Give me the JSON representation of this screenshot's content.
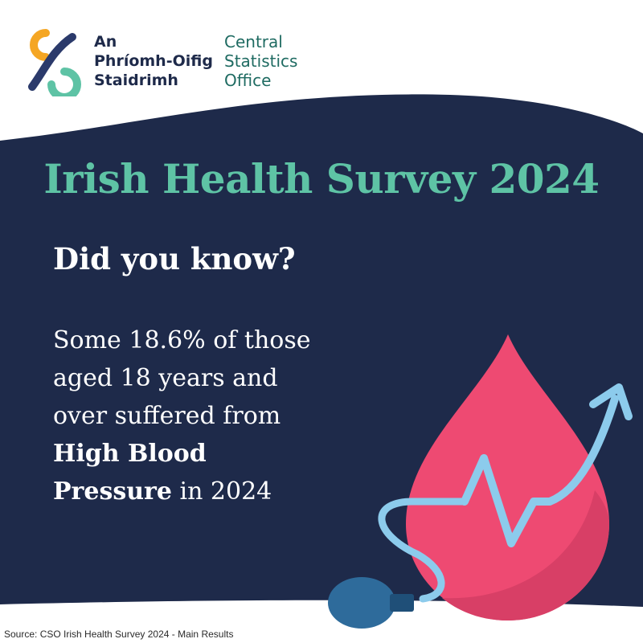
{
  "logo": {
    "irish_lines": [
      "An",
      "Phríomh-Oifig",
      "Staidrimh"
    ],
    "english_lines": [
      "Central",
      "Statistics",
      "Office"
    ]
  },
  "title": "Irish Health Survey 2024",
  "kicker": "Did you know?",
  "body": {
    "line1": "Some 18.6% of those",
    "line2": "aged 18 years and",
    "line3": "over suffered from",
    "line4_bold": "High Blood",
    "line5_bold": "Pressure",
    "line5_rest": " in 2024"
  },
  "source": "Source: CSO Irish Health Survey 2024 - Main Results",
  "colors": {
    "navy": "#1e2a4a",
    "teal": "#5ec3a5",
    "blood_drop": "#ee4a72",
    "pulse_line": "#8ccbec",
    "pump_bulb": "#2e6b9b"
  },
  "icons": [
    "cso-logo-icon",
    "blood-drop-icon",
    "pulse-line-icon",
    "blood-pressure-pump-icon"
  ]
}
